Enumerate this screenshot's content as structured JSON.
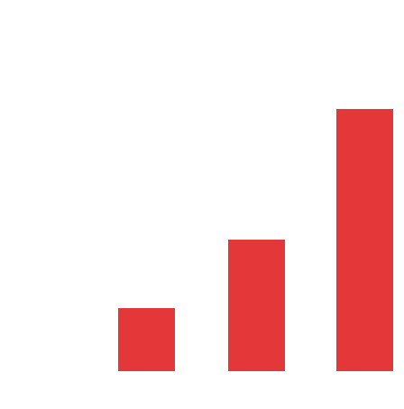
{
  "graphic": {
    "color": "#e4373a",
    "bars": [
      {
        "level": 0.24
      },
      {
        "level": 0.5
      },
      {
        "level": 1.0
      }
    ]
  }
}
